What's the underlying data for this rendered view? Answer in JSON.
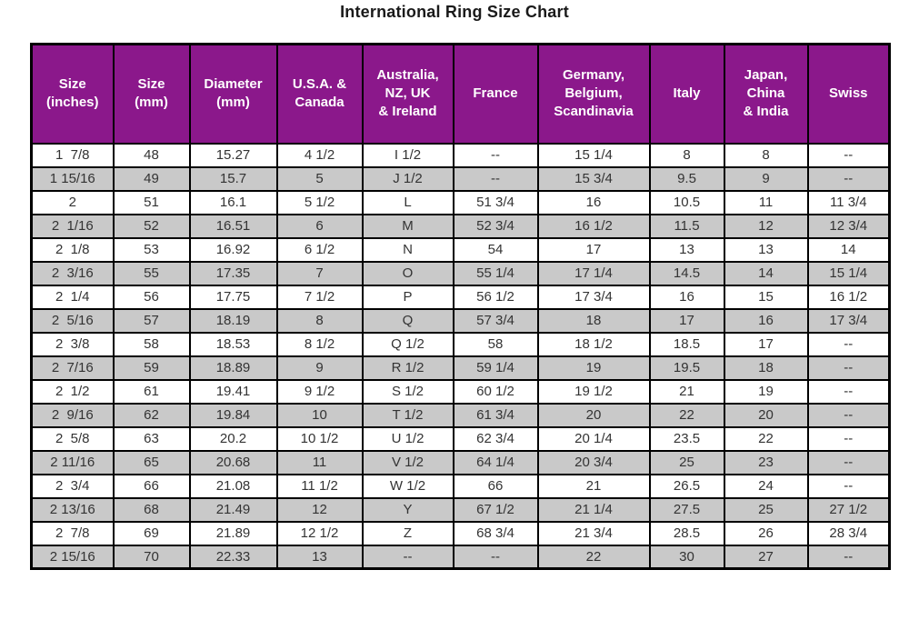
{
  "colors": {
    "header_bg": "#8B188B",
    "header_text": "#FFFFFF",
    "row_alt_bg": "#C9C9C9",
    "row_bg": "#FFFFFF",
    "border": "#000000",
    "text": "#333333",
    "title_text": "#1A1A1A"
  },
  "chart_data": {
    "type": "table",
    "title": "International Ring Size Chart",
    "columns": [
      "Size\n(inches)",
      "Size\n(mm)",
      "Diameter\n(mm)",
      "U.S.A. &\nCanada",
      "Australia,\nNZ, UK\n& Ireland",
      "France",
      "Germany,\nBelgium,\nScandinavia",
      "Italy",
      "Japan,\nChina\n& India",
      "Swiss"
    ],
    "rows": [
      [
        "1  7/8",
        "48",
        "15.27",
        "4 1/2",
        "I 1/2",
        "--",
        "15 1/4",
        "8",
        "8",
        "--"
      ],
      [
        "1 15/16",
        "49",
        "15.7",
        "5",
        "J 1/2",
        "--",
        "15 3/4",
        "9.5",
        "9",
        "--"
      ],
      [
        "2",
        "51",
        "16.1",
        "5 1/2",
        "L",
        "51 3/4",
        "16",
        "10.5",
        "11",
        "11 3/4"
      ],
      [
        "2  1/16",
        "52",
        "16.51",
        "6",
        "M",
        "52 3/4",
        "16 1/2",
        "11.5",
        "12",
        "12 3/4"
      ],
      [
        "2  1/8",
        "53",
        "16.92",
        "6 1/2",
        "N",
        "54",
        "17",
        "13",
        "13",
        "14"
      ],
      [
        "2  3/16",
        "55",
        "17.35",
        "7",
        "O",
        "55 1/4",
        "17 1/4",
        "14.5",
        "14",
        "15 1/4"
      ],
      [
        "2  1/4",
        "56",
        "17.75",
        "7 1/2",
        "P",
        "56 1/2",
        "17 3/4",
        "16",
        "15",
        "16 1/2"
      ],
      [
        "2  5/16",
        "57",
        "18.19",
        "8",
        "Q",
        "57 3/4",
        "18",
        "17",
        "16",
        "17 3/4"
      ],
      [
        "2  3/8",
        "58",
        "18.53",
        "8 1/2",
        "Q 1/2",
        "58",
        "18 1/2",
        "18.5",
        "17",
        "--"
      ],
      [
        "2  7/16",
        "59",
        "18.89",
        "9",
        "R 1/2",
        "59 1/4",
        "19",
        "19.5",
        "18",
        "--"
      ],
      [
        "2  1/2",
        "61",
        "19.41",
        "9 1/2",
        "S 1/2",
        "60 1/2",
        "19 1/2",
        "21",
        "19",
        "--"
      ],
      [
        "2  9/16",
        "62",
        "19.84",
        "10",
        "T 1/2",
        "61 3/4",
        "20",
        "22",
        "20",
        "--"
      ],
      [
        "2  5/8",
        "63",
        "20.2",
        "10 1/2",
        "U 1/2",
        "62 3/4",
        "20 1/4",
        "23.5",
        "22",
        "--"
      ],
      [
        "2 11/16",
        "65",
        "20.68",
        "11",
        "V 1/2",
        "64 1/4",
        "20 3/4",
        "25",
        "23",
        "--"
      ],
      [
        "2  3/4",
        "66",
        "21.08",
        "11 1/2",
        "W 1/2",
        "66",
        "21",
        "26.5",
        "24",
        "--"
      ],
      [
        "2 13/16",
        "68",
        "21.49",
        "12",
        "Y",
        "67 1/2",
        "21 1/4",
        "27.5",
        "25",
        "27 1/2"
      ],
      [
        "2  7/8",
        "69",
        "21.89",
        "12 1/2",
        "Z",
        "68 3/4",
        "21 3/4",
        "28.5",
        "26",
        "28 3/4"
      ],
      [
        "2 15/16",
        "70",
        "22.33",
        "13",
        "--",
        "--",
        "22",
        "30",
        "27",
        "--"
      ]
    ]
  }
}
